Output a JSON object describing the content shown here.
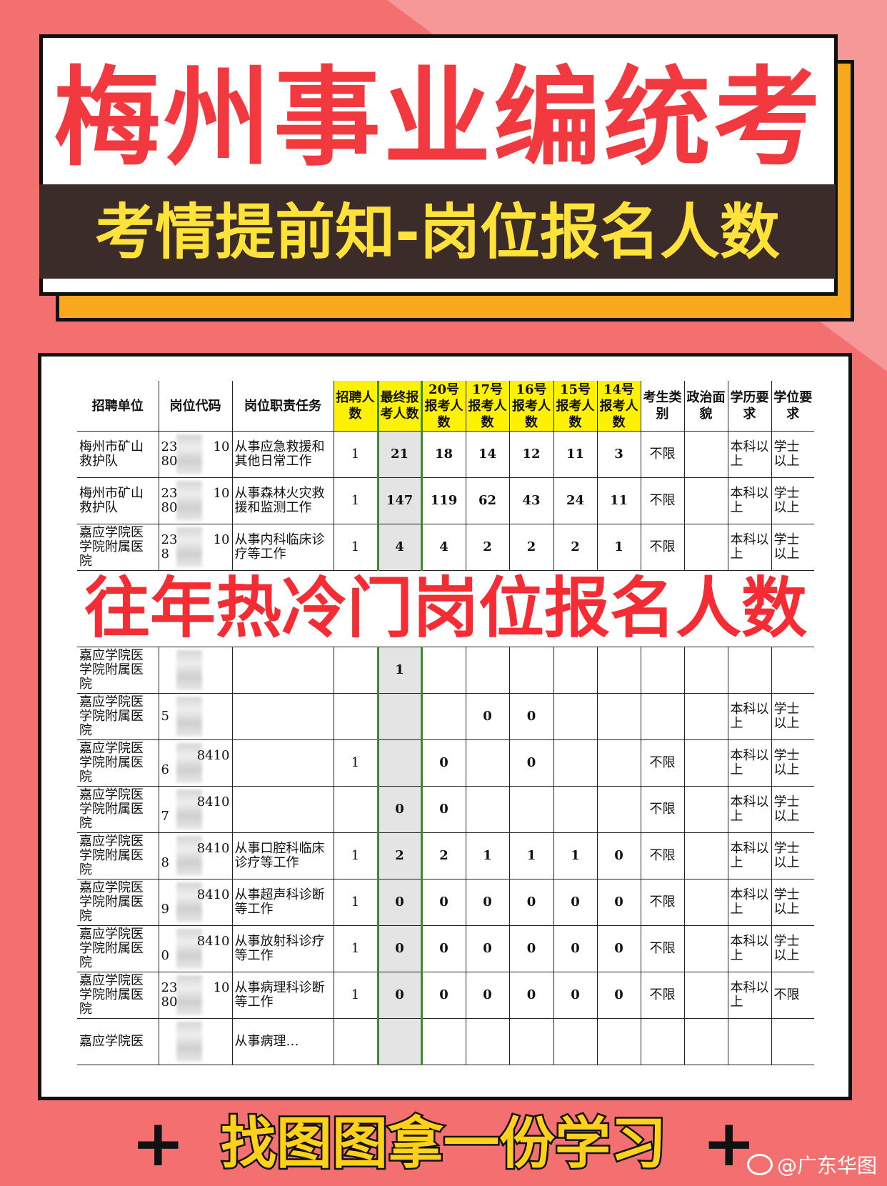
{
  "colors": {
    "background": "#f46f6f",
    "title_red": "#f2393f",
    "band": "#3b2b29",
    "sub_yellow": "#ffe23a",
    "header_highlight": "#fff200",
    "final_column_border": "#3d8b2d"
  },
  "title": {
    "main": "梅州事业编统考",
    "sub": "考情提前知-岗位报名人数"
  },
  "table": {
    "headers": [
      "招聘单位",
      "岗位代码",
      "岗位职责任务",
      "招聘人数",
      "最终报考人数",
      "20号报考人数",
      "17号报考人数",
      "16号报考人数",
      "15号报考人数",
      "14号报考人数",
      "考生类别",
      "政治面貌",
      "学历要求",
      "学位要求"
    ],
    "rows": [
      {
        "unit": "梅州市矿山救护队",
        "code_a": "23",
        "code_b": "10",
        "code_c": "80",
        "duty": "从事应急救援和其他日常工作",
        "nums": [
          "1",
          "21",
          "18",
          "14",
          "12",
          "11",
          "3"
        ],
        "category": "不限",
        "politics": "",
        "education": "本科以上",
        "degree": "学士以上"
      },
      {
        "unit": "梅州市矿山救护队",
        "code_a": "23",
        "code_b": "10",
        "code_c": "80",
        "duty": "从事森林火灾救援和监测工作",
        "nums": [
          "1",
          "147",
          "119",
          "62",
          "43",
          "24",
          "11"
        ],
        "category": "不限",
        "politics": "",
        "education": "本科以上",
        "degree": "学士以上"
      },
      {
        "unit": "嘉应学院医学院附属医院",
        "code_a": "23",
        "code_b": "10",
        "code_c": "8",
        "duty": "从事内科临床诊疗等工作",
        "nums": [
          "1",
          "4",
          "4",
          "2",
          "2",
          "2",
          "1"
        ],
        "category": "不限",
        "politics": "",
        "education": "本科以上",
        "degree": "学士以上"
      },
      {
        "unit": "嘉应学院医学院附属医院",
        "code_a": "",
        "code_b": "",
        "code_c": "",
        "duty": "",
        "nums": [
          "",
          "1",
          "",
          "",
          "",
          "",
          ""
        ],
        "category": "",
        "politics": "",
        "education": "",
        "degree": ""
      },
      {
        "unit": "嘉应学院医学院附属医院",
        "code_a": "",
        "code_b": "",
        "code_c": "5",
        "duty": "",
        "nums": [
          "",
          "",
          "",
          "0",
          "0",
          "",
          ""
        ],
        "category": "",
        "politics": "",
        "education": "本科以上",
        "degree": "学士以上"
      },
      {
        "unit": "嘉应学院医学院附属医院",
        "code_a": "",
        "code_b": "8410",
        "code_c": "6",
        "duty": "",
        "nums": [
          "1",
          "",
          "0",
          "",
          "0",
          "",
          ""
        ],
        "category": "不限",
        "politics": "",
        "education": "本科以上",
        "degree": "学士以上"
      },
      {
        "unit": "嘉应学院医学院附属医院",
        "code_a": "",
        "code_b": "8410",
        "code_c": "7",
        "duty": "",
        "nums": [
          "",
          "0",
          "0",
          "",
          "",
          "",
          ""
        ],
        "category": "不限",
        "politics": "",
        "education": "本科以上",
        "degree": "学士以上"
      },
      {
        "unit": "嘉应学院医学院附属医院",
        "code_a": "",
        "code_b": "8410",
        "code_c": "8",
        "duty": "从事口腔科临床诊疗等工作",
        "nums": [
          "1",
          "2",
          "2",
          "1",
          "1",
          "1",
          "0"
        ],
        "category": "不限",
        "politics": "",
        "education": "本科以上",
        "degree": "学士以上"
      },
      {
        "unit": "嘉应学院医学院附属医院",
        "code_a": "",
        "code_b": "8410",
        "code_c": "9",
        "duty": "从事超声科诊断等工作",
        "nums": [
          "1",
          "0",
          "0",
          "0",
          "0",
          "0",
          "0"
        ],
        "category": "不限",
        "politics": "",
        "education": "本科以上",
        "degree": "学士以上"
      },
      {
        "unit": "嘉应学院医学院附属医院",
        "code_a": "",
        "code_b": "8410",
        "code_c": "0",
        "duty": "从事放射科诊疗等工作",
        "nums": [
          "1",
          "0",
          "0",
          "0",
          "0",
          "0",
          "0"
        ],
        "category": "不限",
        "politics": "",
        "education": "本科以上",
        "degree": "学士以上"
      },
      {
        "unit": "嘉应学院医学院附属医院",
        "code_a": "23",
        "code_b": "10",
        "code_c": "80",
        "duty": "从事病理科诊断等工作",
        "nums": [
          "1",
          "0",
          "0",
          "0",
          "0",
          "0",
          "0"
        ],
        "category": "不限",
        "politics": "",
        "education": "本科以上",
        "degree": "不限"
      },
      {
        "unit": "嘉应学院医",
        "code_a": "",
        "code_b": "",
        "code_c": "",
        "duty": "从事病理…",
        "nums": [
          "",
          "",
          "",
          "",
          "",
          "",
          ""
        ],
        "category": "",
        "politics": "",
        "education": "",
        "degree": ""
      }
    ]
  },
  "overlay": {
    "line1": "往年热冷门岗位",
    "line2": "报名人数"
  },
  "footer": {
    "plus_left": "+",
    "text": "找图图拿一份学习",
    "plus_right": "+"
  },
  "watermark": {
    "handle": "@广东华图",
    "icon": "weibo-icon"
  }
}
